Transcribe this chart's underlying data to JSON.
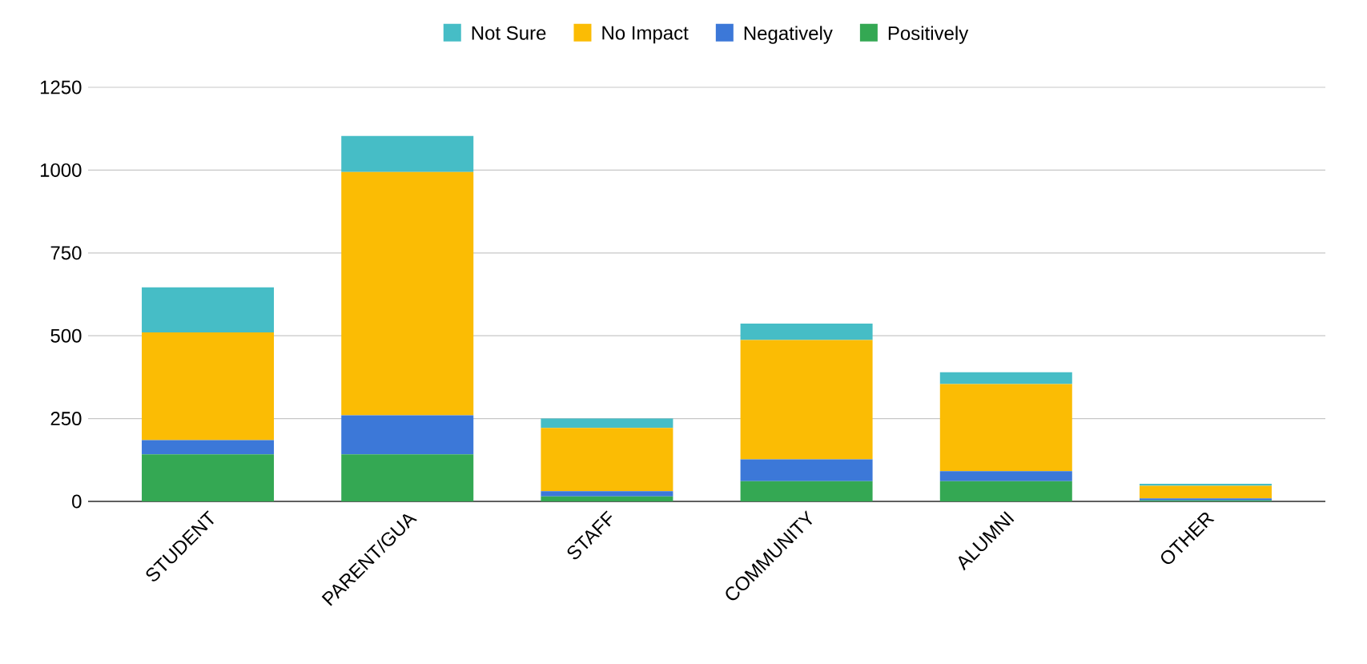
{
  "chart_data": {
    "type": "bar",
    "stacked": true,
    "categories": [
      "STUDENT",
      "PARENT/GUA",
      "STAFF",
      "COMMUNITY",
      "ALUMNI",
      "OTHER"
    ],
    "series": [
      {
        "name": "Positively",
        "color": "#34a853",
        "values": [
          142,
          142,
          15,
          61,
          61,
          3
        ]
      },
      {
        "name": "Negatively",
        "color": "#3c78d8",
        "values": [
          43,
          118,
          16,
          66,
          30,
          6
        ]
      },
      {
        "name": "No Impact",
        "color": "#fbbc04",
        "values": [
          325,
          734,
          191,
          360,
          263,
          38
        ]
      },
      {
        "name": "Not Sure",
        "color": "#46bdc6",
        "values": [
          136,
          109,
          28,
          50,
          36,
          6
        ]
      }
    ],
    "ylim": [
      0,
      1250
    ],
    "yticks": [
      0,
      250,
      500,
      750,
      1000,
      1250
    ],
    "grid": "y",
    "legend": "top"
  }
}
